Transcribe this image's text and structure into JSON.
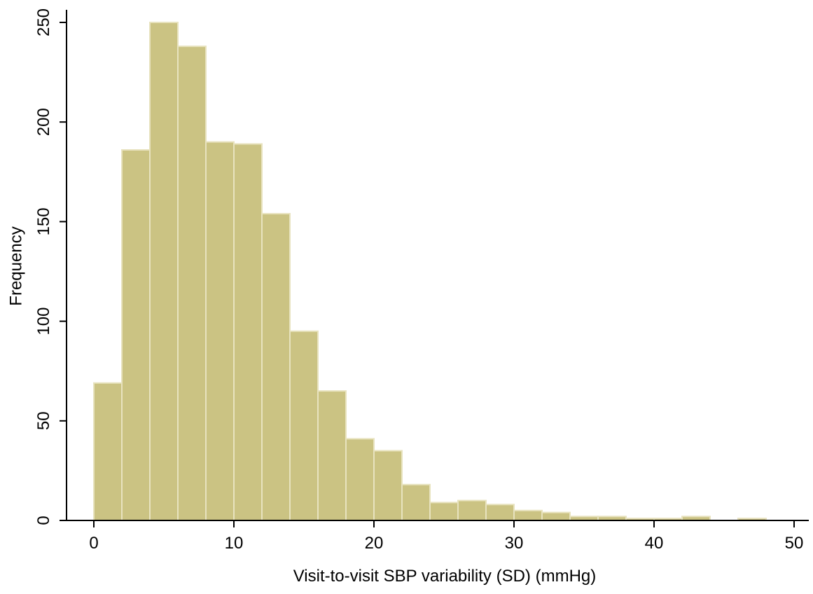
{
  "chart_data": {
    "type": "histogram",
    "xlabel": "Visit-to-visit SBP variability (SD) (mmHg)",
    "ylabel": "Frequency",
    "bins": [
      0,
      2,
      4,
      6,
      8,
      10,
      12,
      14,
      16,
      18,
      20,
      22,
      24,
      26,
      28,
      30,
      32,
      34,
      36,
      38,
      40,
      42,
      44,
      46,
      48
    ],
    "values": [
      69,
      186,
      250,
      238,
      190,
      189,
      154,
      95,
      65,
      41,
      35,
      18,
      9,
      10,
      8,
      5,
      4,
      2,
      2,
      1,
      1,
      2,
      0,
      1
    ],
    "color": "#cbc383",
    "xlim": [
      0,
      50
    ],
    "xticks": [
      0,
      10,
      20,
      30,
      40,
      50
    ],
    "ylim": [
      0,
      250
    ],
    "yticks": [
      0,
      50,
      100,
      150,
      200,
      250
    ]
  }
}
